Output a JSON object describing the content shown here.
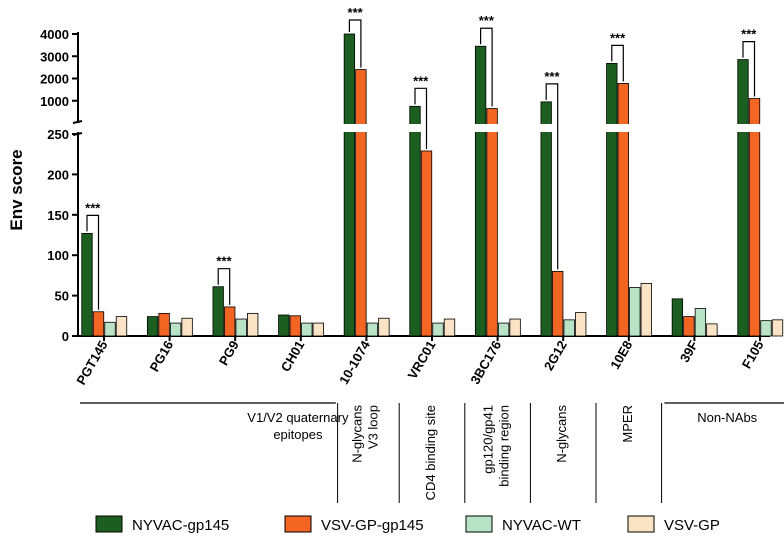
{
  "chart_data": {
    "type": "bar",
    "ylabel": "Env score",
    "categories": [
      "PGT145",
      "PG16",
      "PG9",
      "CH01",
      "10-1074",
      "VRC01",
      "3BC176",
      "2G12",
      "10E8",
      "39F",
      "F105"
    ],
    "series": [
      {
        "name": "NYVAC-gp145",
        "color": "#1b5e20",
        "values": [
          127,
          24,
          61,
          26,
          4000,
          750,
          3450,
          950,
          2680,
          46,
          2850
        ]
      },
      {
        "name": "VSV-GP-gp145",
        "color": "#f26522",
        "values": [
          30,
          28,
          36,
          25,
          2400,
          229,
          650,
          80,
          1780,
          24,
          1100
        ]
      },
      {
        "name": "NYVAC-WT",
        "color": "#b9e3c6",
        "values": [
          17,
          16,
          21,
          16,
          16,
          16,
          16,
          20,
          60,
          34,
          19
        ]
      },
      {
        "name": "VSV-GP",
        "color": "#fbe3c6",
        "values": [
          24,
          22,
          28,
          16,
          22,
          21,
          21,
          29,
          65,
          15,
          20
        ]
      }
    ],
    "y_axis": {
      "lower": {
        "range": [
          0,
          250
        ],
        "ticks": [
          "0",
          "50",
          "100",
          "150",
          "200",
          "250"
        ]
      },
      "upper": {
        "range": [
          0,
          4200
        ],
        "ticks": [
          "1000",
          "2000",
          "3000",
          "4000"
        ]
      }
    },
    "significance": [
      {
        "category": "PGT145",
        "label": "***"
      },
      {
        "category": "PG9",
        "label": "***"
      },
      {
        "category": "10-1074",
        "label": "***"
      },
      {
        "category": "VRC01",
        "label": "***"
      },
      {
        "category": "3BC176",
        "label": "***"
      },
      {
        "category": "2G12",
        "label": "***"
      },
      {
        "category": "10E8",
        "label": "***"
      },
      {
        "category": "F105",
        "label": "***"
      }
    ],
    "groups": [
      {
        "label_lines": [
          "V1/V2 quaternary",
          "epitopes"
        ],
        "categories": [
          "PGT145",
          "PG16",
          "PG9",
          "CH01"
        ]
      },
      {
        "label_lines": [
          "N-glycans",
          "V3 loop"
        ],
        "categories": [
          "10-1074"
        ]
      },
      {
        "label_lines": [
          "CD4 binding site"
        ],
        "categories": [
          "VRC01"
        ]
      },
      {
        "label_lines": [
          "gp120/gp41",
          "binding region"
        ],
        "categories": [
          "3BC176"
        ]
      },
      {
        "label_lines": [
          "N-glycans"
        ],
        "categories": [
          "2G12"
        ]
      },
      {
        "label_lines": [
          "MPER"
        ],
        "categories": [
          "10E8"
        ]
      },
      {
        "label_lines": [
          "Non-NAbs"
        ],
        "categories": [
          "39F",
          "F105"
        ]
      }
    ],
    "legend_position": "bottom"
  }
}
